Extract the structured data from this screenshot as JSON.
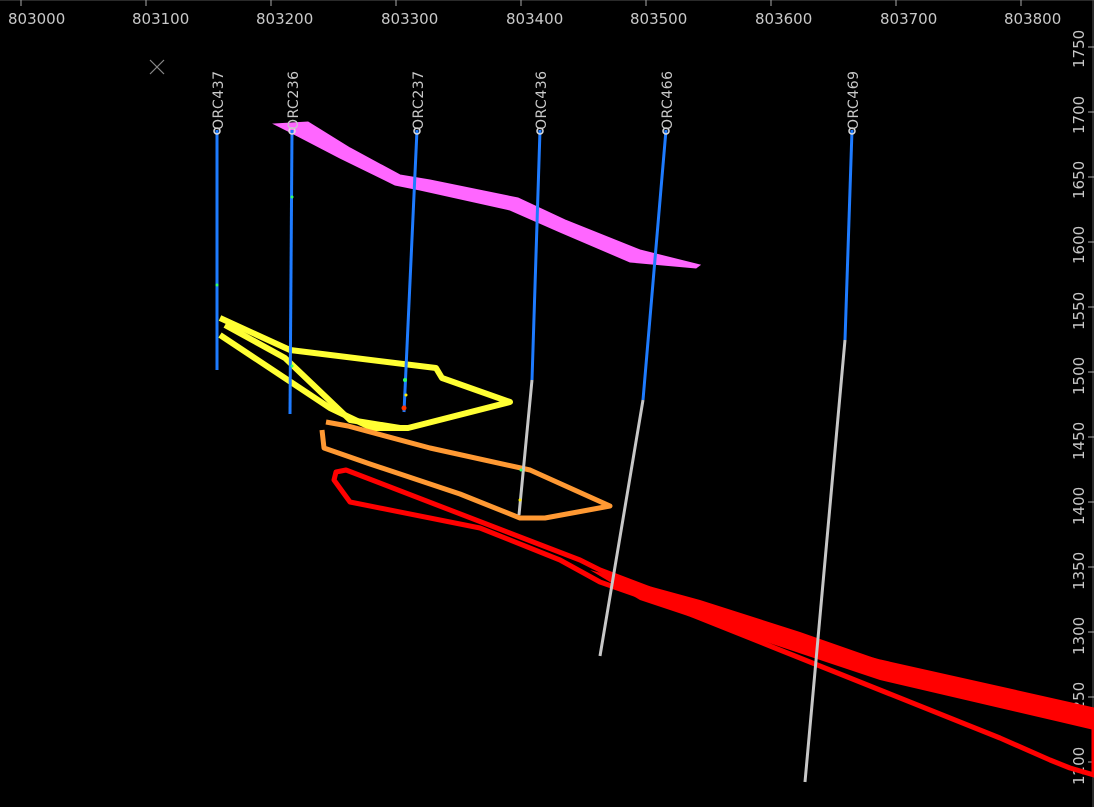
{
  "section": {
    "x_ticks": [
      "803000",
      "803100",
      "803200",
      "803300",
      "803400",
      "803500",
      "803600",
      "803700",
      "803800"
    ],
    "y_ticks": [
      "1750",
      "1700",
      "1650",
      "1600",
      "1550",
      "1500",
      "1450",
      "1400",
      "1350",
      "1300",
      "1250",
      "1200"
    ],
    "x_range": [
      803000,
      803850
    ],
    "y_range": [
      1190,
      1770
    ]
  },
  "drillholes": [
    {
      "id": "ORC437",
      "collar_x": 803140,
      "collar_y": 1690,
      "end_x": 803140,
      "end_y": 1510,
      "trace_color": "#1e7bff"
    },
    {
      "id": "ORC236",
      "collar_x": 803199,
      "collar_y": 1690,
      "end_x": 803200,
      "end_y": 1476,
      "trace_color": "#1e7bff"
    },
    {
      "id": "ORC237",
      "collar_x": 803300,
      "collar_y": 1690,
      "end_x": 803291,
      "end_y": 1480,
      "trace_color": "#1e7bff"
    },
    {
      "id": "ORC436",
      "collar_x": 803398,
      "collar_y": 1690,
      "end_x": 803385,
      "end_y": 1398,
      "trace_color": "#1e7bff",
      "lower_color": "#c8c8c8"
    },
    {
      "id": "ORC466",
      "collar_x": 803500,
      "collar_y": 1690,
      "end_x": 803450,
      "end_y": 1290,
      "trace_color": "#1e7bff",
      "lower_color": "#c8c8c8"
    },
    {
      "id": "ORC469",
      "collar_x": 803650,
      "collar_y": 1690,
      "end_x": 803608,
      "end_y": 1192,
      "trace_color": "#1e7bff",
      "lower_color": "#c8c8c8"
    }
  ],
  "bodies": [
    {
      "id": "magenta",
      "color": "#ff66ff"
    },
    {
      "id": "yellow",
      "color": "#ffff33"
    },
    {
      "id": "orange",
      "color": "#ff9933"
    },
    {
      "id": "red",
      "color": "#ff0000"
    }
  ],
  "icons": {
    "close_marker": "x-mark-icon"
  }
}
